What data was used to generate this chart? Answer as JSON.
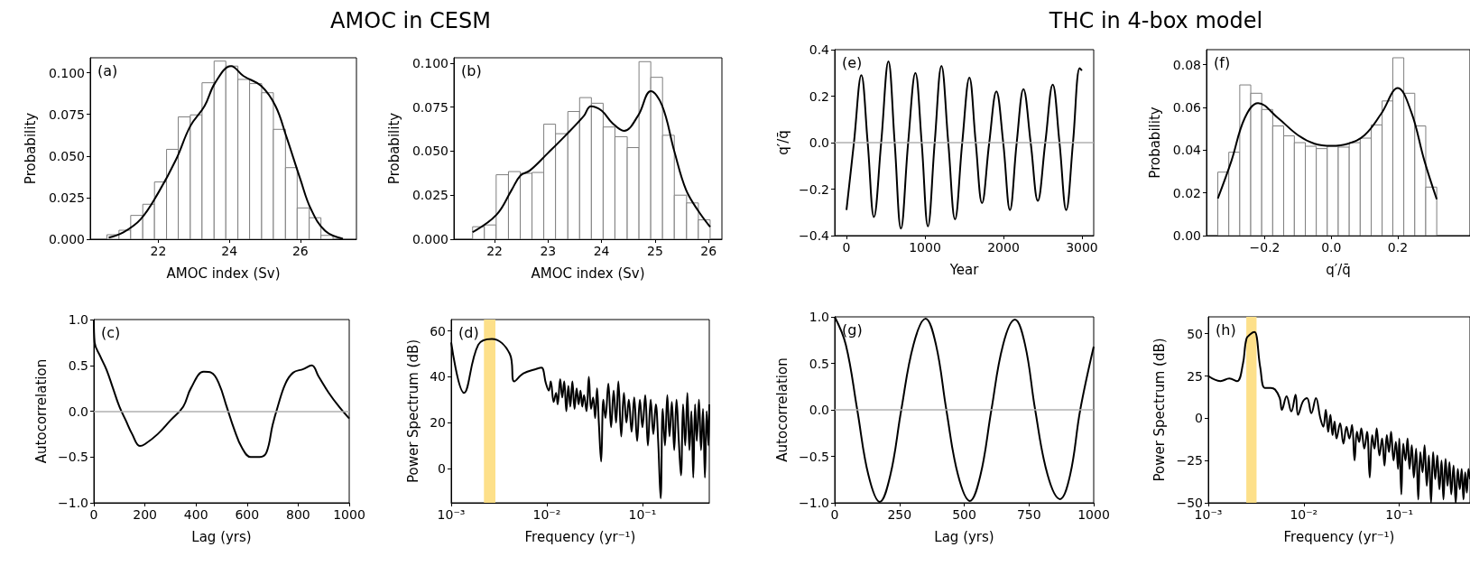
{
  "chart_data": [
    {
      "type": "histogram",
      "title": "AMOC in CESM",
      "xlabel": "AMOC index (Sv)",
      "ylabel": "Probability",
      "annotations": [
        "(a)"
      ],
      "xlim": [
        20.08,
        27.58
      ],
      "ylim": [
        0,
        0.109
      ],
      "xticks": [
        22,
        24,
        26
      ],
      "yticks": [
        {
          "value": 0,
          "label": "0.000"
        },
        {
          "value": 0.025,
          "label": "0.025"
        },
        {
          "value": 0.05,
          "label": "0.050"
        },
        {
          "value": 0.075,
          "label": "0.075"
        },
        {
          "value": 0.1,
          "label": "0.100"
        }
      ],
      "series": [
        {
          "type": "histogram",
          "color": "#ffffff",
          "bins": [
            20.55,
            20.89,
            21.22,
            21.56,
            21.89,
            22.23,
            22.56,
            22.9,
            23.23,
            23.57,
            23.9,
            24.24,
            24.57,
            24.91,
            25.24,
            25.58,
            25.91,
            26.25,
            26.58,
            26.92
          ],
          "values": [
            0.0027,
            0.0054,
            0.0143,
            0.021,
            0.0344,
            0.054,
            0.0735,
            0.0747,
            0.094,
            0.107,
            0.104,
            0.096,
            0.0935,
            0.088,
            0.066,
            0.043,
            0.0188,
            0.0129,
            0.0023
          ]
        },
        {
          "type": "line",
          "color": "#000000",
          "x": [
            20.6,
            21,
            21.5,
            22,
            22.5,
            22.9,
            23.3,
            23.6,
            24.05,
            24.4,
            24.9,
            25.3,
            25.6,
            26,
            26.3,
            26.7,
            27.2
          ],
          "values": [
            0.001,
            0.004,
            0.012,
            0.028,
            0.048,
            0.068,
            0.08,
            0.094,
            0.104,
            0.098,
            0.092,
            0.08,
            0.062,
            0.036,
            0.018,
            0.005,
            0.0003
          ]
        }
      ]
    },
    {
      "type": "histogram",
      "xlabel": "AMOC index (Sv)",
      "ylabel": "Probability",
      "annotations": [
        "(b)"
      ],
      "xlim": [
        21.24,
        26.25
      ],
      "ylim": [
        0,
        0.103
      ],
      "xticks": [
        22,
        23,
        24,
        25,
        26
      ],
      "yticks": [
        {
          "value": 0,
          "label": "0.000"
        },
        {
          "value": 0.025,
          "label": "0.025"
        },
        {
          "value": 0.05,
          "label": "0.050"
        },
        {
          "value": 0.075,
          "label": "0.075"
        },
        {
          "value": 0.1,
          "label": "0.100"
        }
      ],
      "series": [
        {
          "type": "histogram",
          "color": "#ffffff",
          "bins": [
            21.59,
            21.81,
            22.03,
            22.26,
            22.48,
            22.7,
            22.92,
            23.14,
            23.37,
            23.59,
            23.81,
            24.03,
            24.25,
            24.48,
            24.7,
            24.92,
            25.14,
            25.36,
            25.59,
            25.81,
            26.03
          ],
          "values": [
            0.0071,
            0.0081,
            0.0366,
            0.0384,
            0.0374,
            0.0379,
            0.0653,
            0.0599,
            0.0725,
            0.0804,
            0.0772,
            0.0637,
            0.0582,
            0.052,
            0.1008,
            0.0919,
            0.059,
            0.025,
            0.0206,
            0.011
          ]
        },
        {
          "type": "line",
          "color": "#000000",
          "x": [
            21.59,
            22.04,
            22.32,
            22.48,
            22.66,
            23,
            23.33,
            23.67,
            23.8,
            24,
            24.2,
            24.42,
            24.68,
            24.92,
            25.13,
            25.36,
            25.58,
            25.81,
            26.03
          ],
          "values": [
            0.004,
            0.014,
            0.028,
            0.036,
            0.039,
            0.049,
            0.059,
            0.07,
            0.0755,
            0.073,
            0.066,
            0.0615,
            0.07,
            0.084,
            0.076,
            0.05,
            0.028,
            0.016,
            0.007
          ]
        }
      ]
    },
    {
      "type": "line",
      "title": "THC in 4-box model",
      "xlabel": "Year",
      "ylabel": "q′/q̄",
      "annotations": [
        "(e)"
      ],
      "xlim": [
        -150,
        3150
      ],
      "ylim": [
        -0.4,
        0.4
      ],
      "xticks": [
        0,
        1000,
        2000,
        3000
      ],
      "yticks": [
        {
          "value": -0.4,
          "label": "−0.4"
        },
        {
          "value": -0.2,
          "label": "−0.2"
        },
        {
          "value": 0,
          "label": "0.0"
        },
        {
          "value": 0.2,
          "label": "0.2"
        },
        {
          "value": 0.4,
          "label": "0.4"
        }
      ],
      "ref_lines": [
        {
          "axis": "y",
          "value": 0,
          "color": "#b0b0b0"
        }
      ],
      "series": [
        {
          "color": "#000000",
          "x": [
            0,
            95,
            189,
            270,
            350,
            442,
            534,
            614,
            694,
            786,
            878,
            958,
            1038,
            1124,
            1210,
            1297,
            1383,
            1475,
            1566,
            1647,
            1727,
            1819,
            1910,
            1997,
            2083,
            2169,
            2255,
            2347,
            2438,
            2533,
            2628,
            2714,
            2800,
            2886,
            2972,
            3000
          ],
          "values": [
            -0.29,
            0,
            0.29,
            0,
            -0.32,
            0,
            0.35,
            0,
            -0.37,
            0,
            0.3,
            0,
            -0.36,
            0,
            0.33,
            0,
            -0.33,
            0,
            0.28,
            0,
            -0.26,
            0,
            0.22,
            0,
            -0.29,
            0,
            0.23,
            0,
            -0.25,
            0,
            0.25,
            0,
            -0.29,
            0,
            0.32,
            0.31
          ]
        }
      ]
    },
    {
      "type": "histogram",
      "xlabel": "q′/q̄",
      "ylabel": "Probability",
      "annotations": [
        "(f)"
      ],
      "xlim": [
        -0.375,
        0.417
      ],
      "ylim": [
        0,
        0.087
      ],
      "xticks": [
        {
          "value": -0.2,
          "label": "−0.2"
        },
        {
          "value": 0,
          "label": "0.0"
        },
        {
          "value": 0.2,
          "label": "0.2"
        }
      ],
      "yticks": [
        {
          "value": 0,
          "label": "0.00"
        },
        {
          "value": 0.02,
          "label": "0.02"
        },
        {
          "value": 0.04,
          "label": "0.04"
        },
        {
          "value": 0.06,
          "label": "0.06"
        },
        {
          "value": 0.08,
          "label": "0.08"
        }
      ],
      "series": [
        {
          "type": "histogram",
          "color": "#ffffff",
          "bins": [
            -0.341,
            -0.308,
            -0.275,
            -0.242,
            -0.209,
            -0.176,
            -0.143,
            -0.111,
            -0.078,
            -0.045,
            -0.012,
            0.021,
            0.054,
            0.087,
            0.12,
            0.153,
            0.185,
            0.218,
            0.251,
            0.284,
            0.317
          ],
          "values": [
            0.0297,
            0.039,
            0.0705,
            0.0666,
            0.059,
            0.0513,
            0.0467,
            0.0435,
            0.0418,
            0.0407,
            0.0418,
            0.0414,
            0.0435,
            0.0456,
            0.0518,
            0.063,
            0.0832,
            0.0666,
            0.0513,
            0.0227
          ]
        },
        {
          "type": "line",
          "color": "#000000",
          "x": [
            -0.341,
            -0.3,
            -0.26,
            -0.22,
            -0.16,
            -0.1,
            -0.05,
            0,
            0.05,
            0.1,
            0.15,
            0.2,
            0.24,
            0.28,
            0.317
          ],
          "values": [
            0.0174,
            0.035,
            0.055,
            0.062,
            0.055,
            0.047,
            0.043,
            0.042,
            0.043,
            0.047,
            0.057,
            0.069,
            0.058,
            0.035,
            0.017
          ]
        }
      ]
    },
    {
      "type": "line",
      "xlabel": "Lag (yrs)",
      "ylabel": "Autocorrelation",
      "annotations": [
        "(c)"
      ],
      "xlim": [
        0,
        1000
      ],
      "ylim": [
        -1,
        1
      ],
      "xticks": [
        0,
        200,
        400,
        600,
        800,
        1000
      ],
      "yticks": [
        {
          "value": -1,
          "label": "−1.0"
        },
        {
          "value": -0.5,
          "label": "−0.5"
        },
        {
          "value": 0,
          "label": "0.0"
        },
        {
          "value": 0.5,
          "label": "0.5"
        },
        {
          "value": 1,
          "label": "1.0"
        }
      ],
      "ref_lines": [
        {
          "axis": "y",
          "value": 0,
          "color": "#b0b0b0"
        }
      ],
      "series": [
        {
          "color": "#000000",
          "x": [
            0,
            3,
            25,
            50,
            75,
            100,
            125,
            150,
            180,
            200,
            250,
            300,
            350,
            380,
            430,
            460,
            490,
            520,
            550,
            580,
            614,
            650,
            676,
            700,
            720,
            750,
            780,
            820,
            853,
            880,
            920,
            960,
            1000
          ],
          "values": [
            1,
            0.75,
            0.6,
            0.45,
            0.25,
            0.05,
            -0.1,
            -0.25,
            -0.38,
            -0.36,
            -0.25,
            -0.1,
            0.05,
            0.25,
            0.43,
            0.42,
            0.3,
            0.05,
            -0.2,
            -0.4,
            -0.5,
            -0.5,
            -0.45,
            -0.15,
            0.05,
            0.3,
            0.42,
            0.46,
            0.5,
            0.38,
            0.2,
            0.05,
            -0.08
          ]
        }
      ]
    },
    {
      "type": "line",
      "xlabel": "Frequency (yr⁻¹)",
      "ylabel": "Power Spectrum (dB)",
      "annotations": [
        "(d)"
      ],
      "log": "x",
      "xlim": [
        0.001,
        0.5
      ],
      "ylim": [
        -15,
        65
      ],
      "xticks": [
        {
          "value": 0.001,
          "label": "10⁻³"
        },
        {
          "value": 0.01,
          "label": "10⁻²"
        },
        {
          "value": 0.1,
          "label": "10⁻¹"
        }
      ],
      "yticks": [
        0,
        20,
        40,
        60
      ],
      "bands": [
        {
          "axis": "x",
          "from": 0.0022,
          "to": 0.0029,
          "color": "#fde08a"
        }
      ],
      "series": [
        {
          "color": "#000000",
          "x": [
            0.001,
            0.00136,
            0.00192,
            0.00266,
            0.0041,
            0.00457,
            0.00569,
            0.00787,
            0.0088,
            0.0098,
            0.0105,
            0.011,
            0.0118,
            0.0125,
            0.013,
            0.0138,
            0.0145,
            0.0152,
            0.016,
            0.0168,
            0.0176,
            0.0185,
            0.0195,
            0.0205,
            0.0215,
            0.0225,
            0.0235,
            0.0245,
            0.026,
            0.0275,
            0.029,
            0.0305,
            0.032,
            0.0335,
            0.035,
            0.037,
            0.039,
            0.041,
            0.044,
            0.047,
            0.05,
            0.053,
            0.056,
            0.06,
            0.064,
            0.068,
            0.072,
            0.077,
            0.082,
            0.088,
            0.094,
            0.1,
            0.107,
            0.114,
            0.122,
            0.13,
            0.138,
            0.146,
            0.155,
            0.163,
            0.172,
            0.182,
            0.192,
            0.203,
            0.215,
            0.227,
            0.24,
            0.253,
            0.266,
            0.28,
            0.295,
            0.31,
            0.325,
            0.34,
            0.355,
            0.37,
            0.39,
            0.41,
            0.43,
            0.45,
            0.47,
            0.49,
            0.5
          ],
          "values": [
            55,
            33,
            54,
            56.5,
            50,
            38,
            41.5,
            43.5,
            44,
            37,
            34,
            38,
            29,
            33,
            28,
            39,
            31,
            38,
            25,
            36,
            27,
            38,
            26,
            35,
            28,
            34,
            27,
            32,
            25,
            40,
            26,
            31,
            22,
            35,
            20,
            3,
            30,
            22,
            37,
            18,
            34,
            20,
            38,
            14,
            33,
            20,
            30,
            16,
            31,
            12,
            30,
            18,
            32,
            10,
            30,
            15,
            28,
            12,
            -13,
            26,
            10,
            32,
            14,
            29,
            8,
            30,
            12,
            -3,
            28,
            10,
            33,
            8,
            25,
            -4,
            28,
            12,
            30,
            8,
            26,
            -4,
            25,
            10,
            28
          ]
        }
      ]
    },
    {
      "type": "line",
      "xlabel": "Lag (yrs)",
      "ylabel": "Autocorrelation",
      "annotations": [
        "(g)"
      ],
      "xlim": [
        0,
        1000
      ],
      "ylim": [
        -1,
        1
      ],
      "xticks": [
        0,
        250,
        500,
        750,
        1000
      ],
      "yticks": [
        {
          "value": -1,
          "label": "−1.0"
        },
        {
          "value": -0.5,
          "label": "−0.5"
        },
        {
          "value": 0,
          "label": "0.0"
        },
        {
          "value": 0.5,
          "label": "0.5"
        },
        {
          "value": 1,
          "label": "1.0"
        }
      ],
      "ref_lines": [
        {
          "axis": "y",
          "value": 0,
          "color": "#b0b0b0"
        }
      ],
      "series": [
        {
          "color": "#000000",
          "x": [
            0,
            43,
            87,
            130,
            174,
            215,
            257,
            304,
            351,
            391,
            431,
            476,
            522,
            563,
            605,
            650,
            696,
            735,
            774,
            822,
            870,
            909,
            948,
            1000
          ],
          "values": [
            1,
            0.7,
            0,
            -0.7,
            -0.99,
            -0.7,
            0,
            0.7,
            0.98,
            0.7,
            0,
            -0.7,
            -0.98,
            -0.7,
            0,
            0.7,
            0.97,
            0.7,
            0,
            -0.7,
            -0.96,
            -0.7,
            0,
            0.68
          ]
        }
      ]
    },
    {
      "type": "line",
      "xlabel": "Frequency (yr⁻¹)",
      "ylabel": "Power Spectrum (dB)",
      "annotations": [
        "(h)"
      ],
      "log": "x",
      "xlim": [
        0.001,
        0.55
      ],
      "ylim": [
        -50,
        60
      ],
      "xticks": [
        {
          "value": 0.001,
          "label": "10⁻³"
        },
        {
          "value": 0.01,
          "label": "10⁻²"
        },
        {
          "value": 0.1,
          "label": "10⁻¹"
        }
      ],
      "yticks": [
        {
          "value": -50,
          "label": "−50"
        },
        {
          "value": -25,
          "label": "−25"
        },
        0,
        25,
        50
      ],
      "bands": [
        {
          "axis": "x",
          "from": 0.0025,
          "to": 0.0032,
          "color": "#fde08a"
        }
      ],
      "series": [
        {
          "color": "#000000",
          "x": [
            0.001,
            0.00134,
            0.00166,
            0.002,
            0.0023,
            0.00251,
            0.00279,
            0.00305,
            0.0035,
            0.0039,
            0.0045,
            0.005,
            0.0056,
            0.0059,
            0.0066,
            0.0074,
            0.0082,
            0.0087,
            0.0098,
            0.0108,
            0.012,
            0.0134,
            0.0149,
            0.016,
            0.017,
            0.018,
            0.019,
            0.02,
            0.021,
            0.022,
            0.024,
            0.026,
            0.028,
            0.03,
            0.032,
            0.034,
            0.036,
            0.038,
            0.04,
            0.043,
            0.046,
            0.049,
            0.052,
            0.055,
            0.058,
            0.062,
            0.066,
            0.07,
            0.074,
            0.078,
            0.082,
            0.087,
            0.092,
            0.097,
            0.1,
            0.105,
            0.11,
            0.116,
            0.122,
            0.128,
            0.135,
            0.142,
            0.15,
            0.158,
            0.166,
            0.175,
            0.184,
            0.194,
            0.204,
            0.215,
            0.226,
            0.238,
            0.25,
            0.263,
            0.277,
            0.29,
            0.305,
            0.32,
            0.335,
            0.35,
            0.37,
            0.39,
            0.41,
            0.43,
            0.45,
            0.47,
            0.49,
            0.51,
            0.53,
            0.55
          ],
          "values": [
            25,
            22,
            23.5,
            22,
            32,
            47,
            50,
            51,
            30,
            18,
            18,
            17,
            12,
            5,
            13,
            4,
            14,
            2,
            10,
            12,
            3,
            12,
            0,
            -5,
            5,
            -8,
            2,
            -10,
            -2,
            -12,
            -3,
            -15,
            -5,
            -12,
            -4,
            -25,
            -8,
            -14,
            -6,
            -18,
            -8,
            -35,
            -10,
            -18,
            -6,
            -22,
            -12,
            -28,
            -10,
            -20,
            -8,
            -25,
            -14,
            -30,
            -12,
            -45,
            -15,
            -25,
            -12,
            -30,
            -16,
            -35,
            -18,
            -48,
            -20,
            -32,
            -16,
            -40,
            -22,
            -50,
            -20,
            -36,
            -22,
            -42,
            -25,
            -48,
            -24,
            -40,
            -26,
            -45,
            -28,
            -50,
            -30,
            -42,
            -30,
            -48,
            -32,
            -44,
            -30,
            -36
          ]
        }
      ]
    }
  ]
}
